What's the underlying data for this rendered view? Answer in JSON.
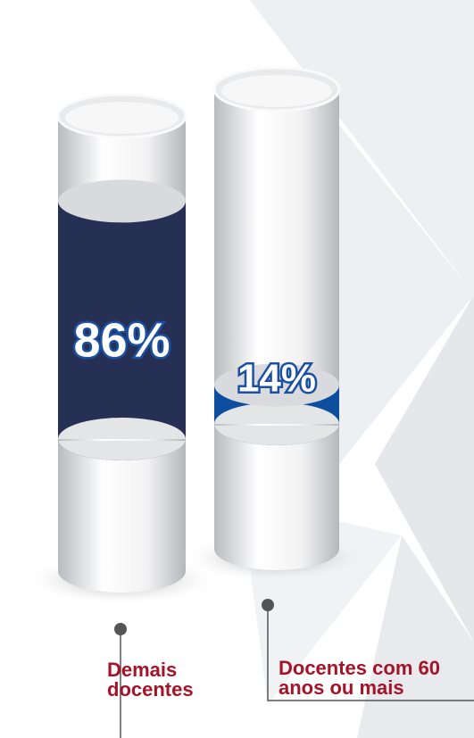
{
  "chart_data": {
    "type": "cylinder",
    "categories": [
      "Demais docentes",
      "Docentes com 60 anos ou mais"
    ],
    "values": [
      86,
      14
    ],
    "value_labels": [
      "86%",
      "14%"
    ],
    "colors": [
      "#263055",
      "#0d4f9e"
    ]
  }
}
